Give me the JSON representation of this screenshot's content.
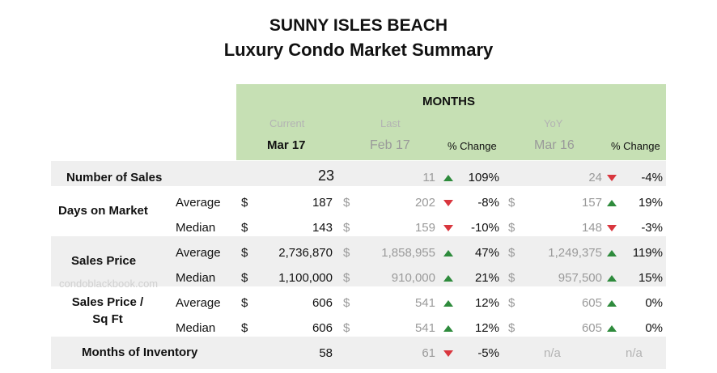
{
  "title_line1": "SUNNY ISLES BEACH",
  "title_line2": "Luxury Condo Market Summary",
  "header": {
    "months": "MONTHS",
    "current_label": "Current",
    "last_label": "Last",
    "yoy_label": "YoY",
    "current_period": "Mar 17",
    "last_period": "Feb 17",
    "yoy_period": "Mar 16",
    "pct_change": "% Change"
  },
  "currency": "$",
  "watermark": "condoblackbook.com",
  "colors": {
    "header_green": "#c6e0b4",
    "band_gray": "#efefef",
    "up": "#2e8b3c",
    "down": "#d9363e"
  },
  "rows": [
    {
      "metric": "Number of Sales",
      "sub": "",
      "current": "23",
      "last": "11",
      "last_dir": "up",
      "last_pct": "109%",
      "yoy": "24",
      "yoy_dir": "down",
      "yoy_pct": "-4%"
    },
    {
      "metric": "Days on Market",
      "sub": "Average",
      "current": "187",
      "last": "202",
      "last_dir": "down",
      "last_pct": "-8%",
      "yoy": "157",
      "yoy_dir": "up",
      "yoy_pct": "19%"
    },
    {
      "metric": "",
      "sub": "Median",
      "current": "143",
      "last": "159",
      "last_dir": "down",
      "last_pct": "-10%",
      "yoy": "148",
      "yoy_dir": "down",
      "yoy_pct": "-3%"
    },
    {
      "metric": "Sales Price",
      "sub": "Average",
      "current": "2,736,870",
      "last": "1,858,955",
      "last_dir": "up",
      "last_pct": "47%",
      "yoy": "1,249,375",
      "yoy_dir": "up",
      "yoy_pct": "119%"
    },
    {
      "metric": "",
      "sub": "Median",
      "current": "1,100,000",
      "last": "910,000",
      "last_dir": "up",
      "last_pct": "21%",
      "yoy": "957,500",
      "yoy_dir": "up",
      "yoy_pct": "15%"
    },
    {
      "metric": "Sales Price /",
      "metric2": "Sq Ft",
      "sub": "Average",
      "current": "606",
      "last": "541",
      "last_dir": "up",
      "last_pct": "12%",
      "yoy": "605",
      "yoy_dir": "up",
      "yoy_pct": "0%"
    },
    {
      "metric": "",
      "sub": "Median",
      "current": "606",
      "last": "541",
      "last_dir": "up",
      "last_pct": "12%",
      "yoy": "605",
      "yoy_dir": "up",
      "yoy_pct": "0%"
    },
    {
      "metric": "Months of Inventory",
      "sub": "",
      "current": "58",
      "last": "61",
      "last_dir": "down",
      "last_pct": "-5%",
      "yoy": "n/a",
      "yoy_dir": "",
      "yoy_pct": "n/a"
    }
  ]
}
